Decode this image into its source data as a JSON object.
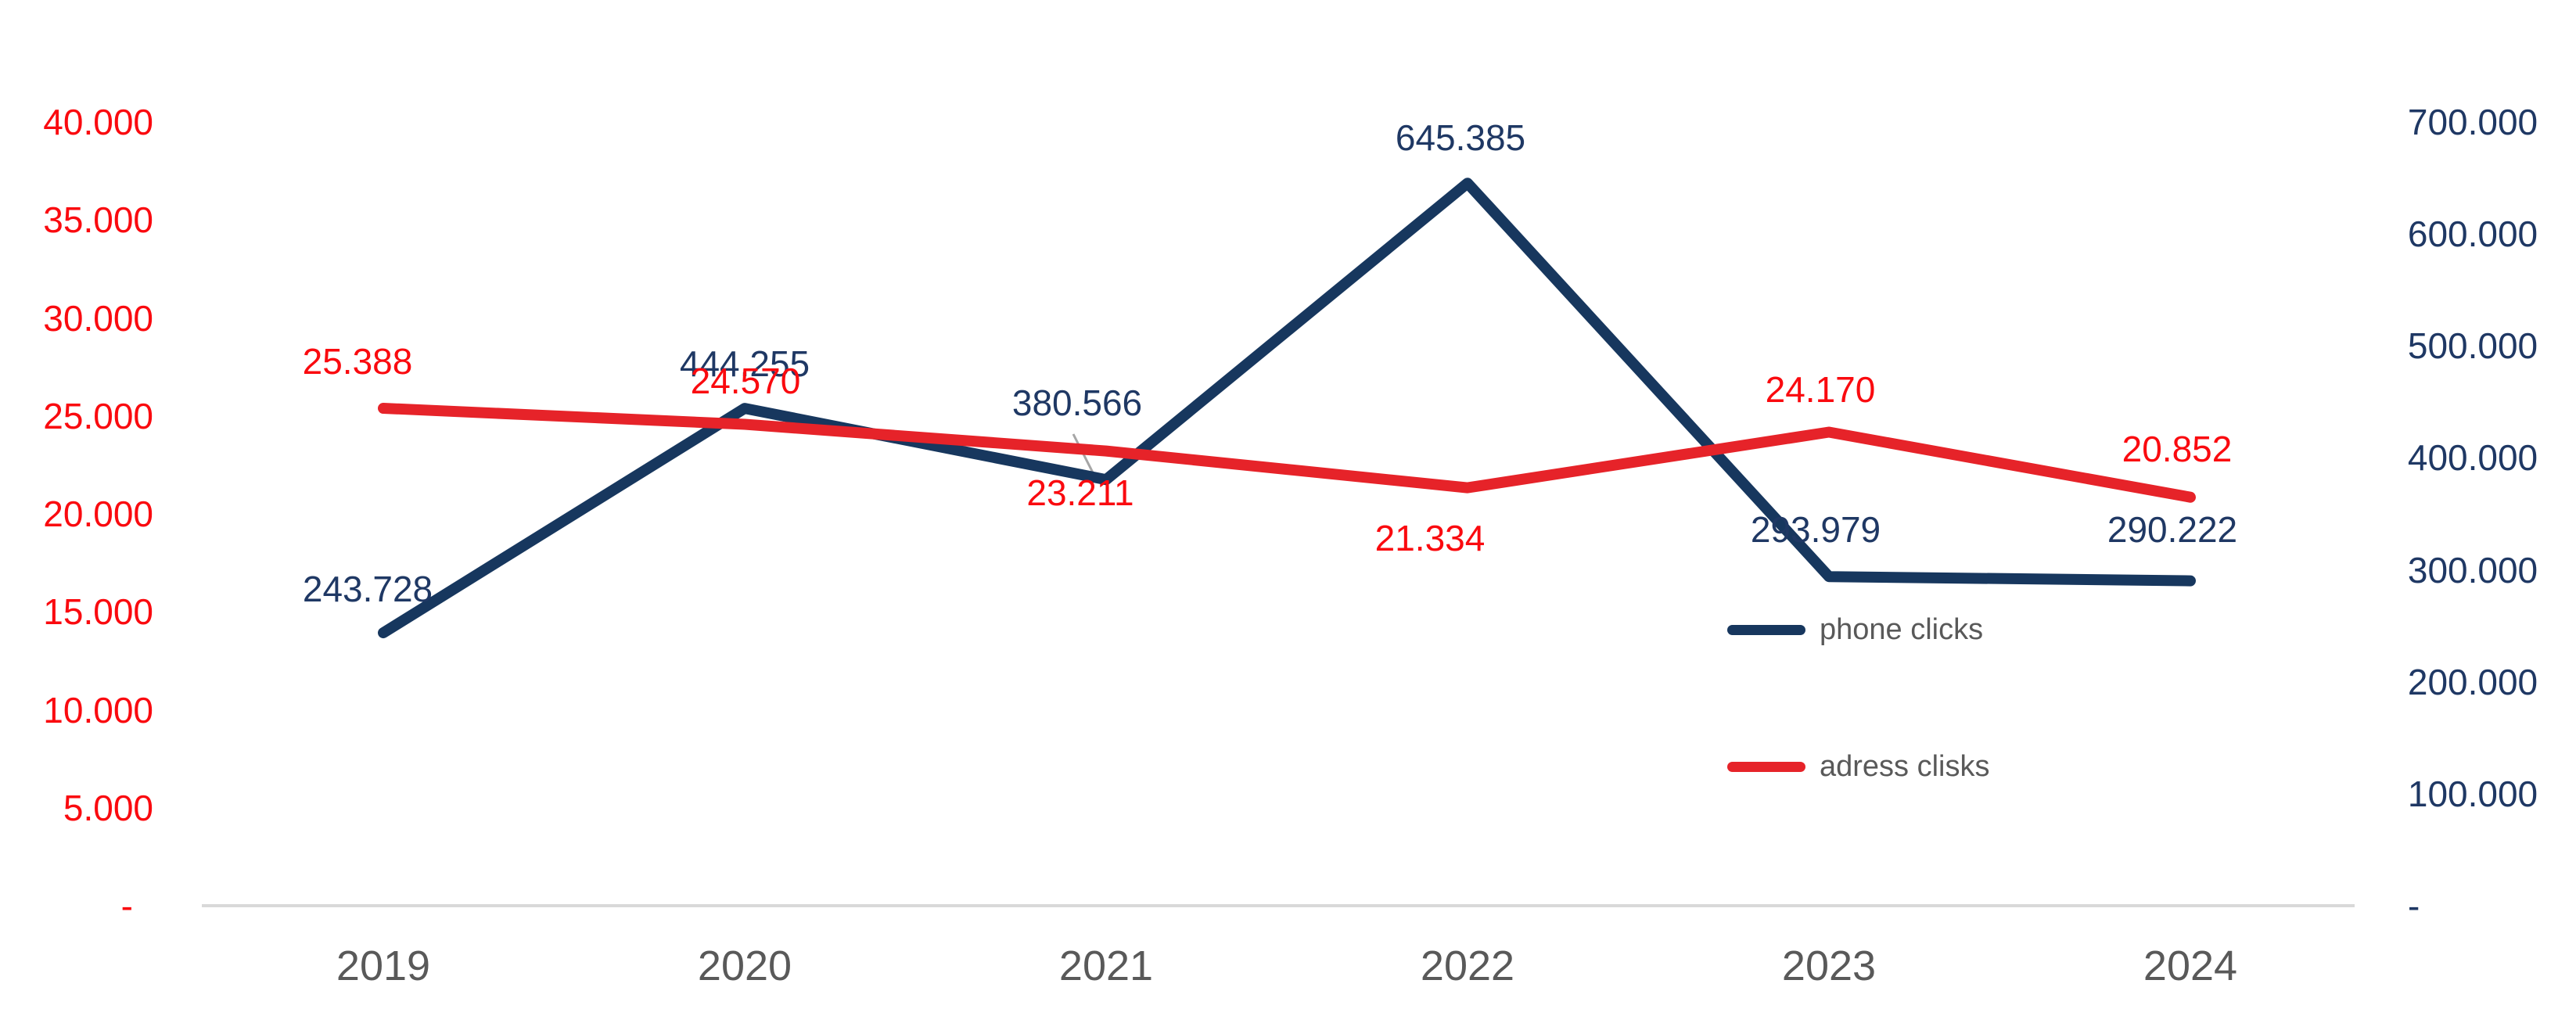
{
  "chart_data": {
    "type": "line",
    "title": "",
    "xlabel": "",
    "ylabel": "",
    "grid": false,
    "categories": [
      "2019",
      "2020",
      "2021",
      "2022",
      "2023",
      "2024"
    ],
    "series": [
      {
        "name": "phone clicks",
        "axis": "right",
        "color": "#17375E",
        "label_color": "#1F3864",
        "values": [
          243728,
          444255,
          380566,
          645385,
          293979,
          290222
        ],
        "labels": [
          "243.728",
          "444.255",
          "380.566",
          "645.385",
          "293.979",
          "290.222"
        ]
      },
      {
        "name": "adress clisks",
        "axis": "left",
        "color": "#E62329",
        "label_color": "#FA0A0F",
        "values": [
          25388,
          24570,
          23211,
          21334,
          24170,
          20852
        ],
        "labels": [
          "25.388",
          "24.570",
          "23.211",
          "21.334",
          "24.170",
          "20.852"
        ]
      }
    ],
    "left_axis": {
      "min": 0,
      "max": 40000,
      "color": "#FA0A0F",
      "ticks": [
        "40.000",
        "35.000",
        "30.000",
        "25.000",
        "20.000",
        "15.000",
        "10.000",
        "5.000",
        "-"
      ]
    },
    "right_axis": {
      "min": 0,
      "max": 700000,
      "color": "#1F3864",
      "ticks": [
        "700.000",
        "600.000",
        "500.000",
        "400.000",
        "300.000",
        "200.000",
        "100.000",
        "-"
      ]
    },
    "legend": {
      "position": "center-right",
      "entries": [
        {
          "label": "phone clicks",
          "color": "#17375E"
        },
        {
          "label": "adress clisks",
          "color": "#E62329"
        }
      ]
    },
    "colors": {
      "axis_line": "#D9D9D9",
      "leader_line": "#A6A6A6",
      "category_text": "#595959",
      "legend_text": "#595959"
    }
  }
}
